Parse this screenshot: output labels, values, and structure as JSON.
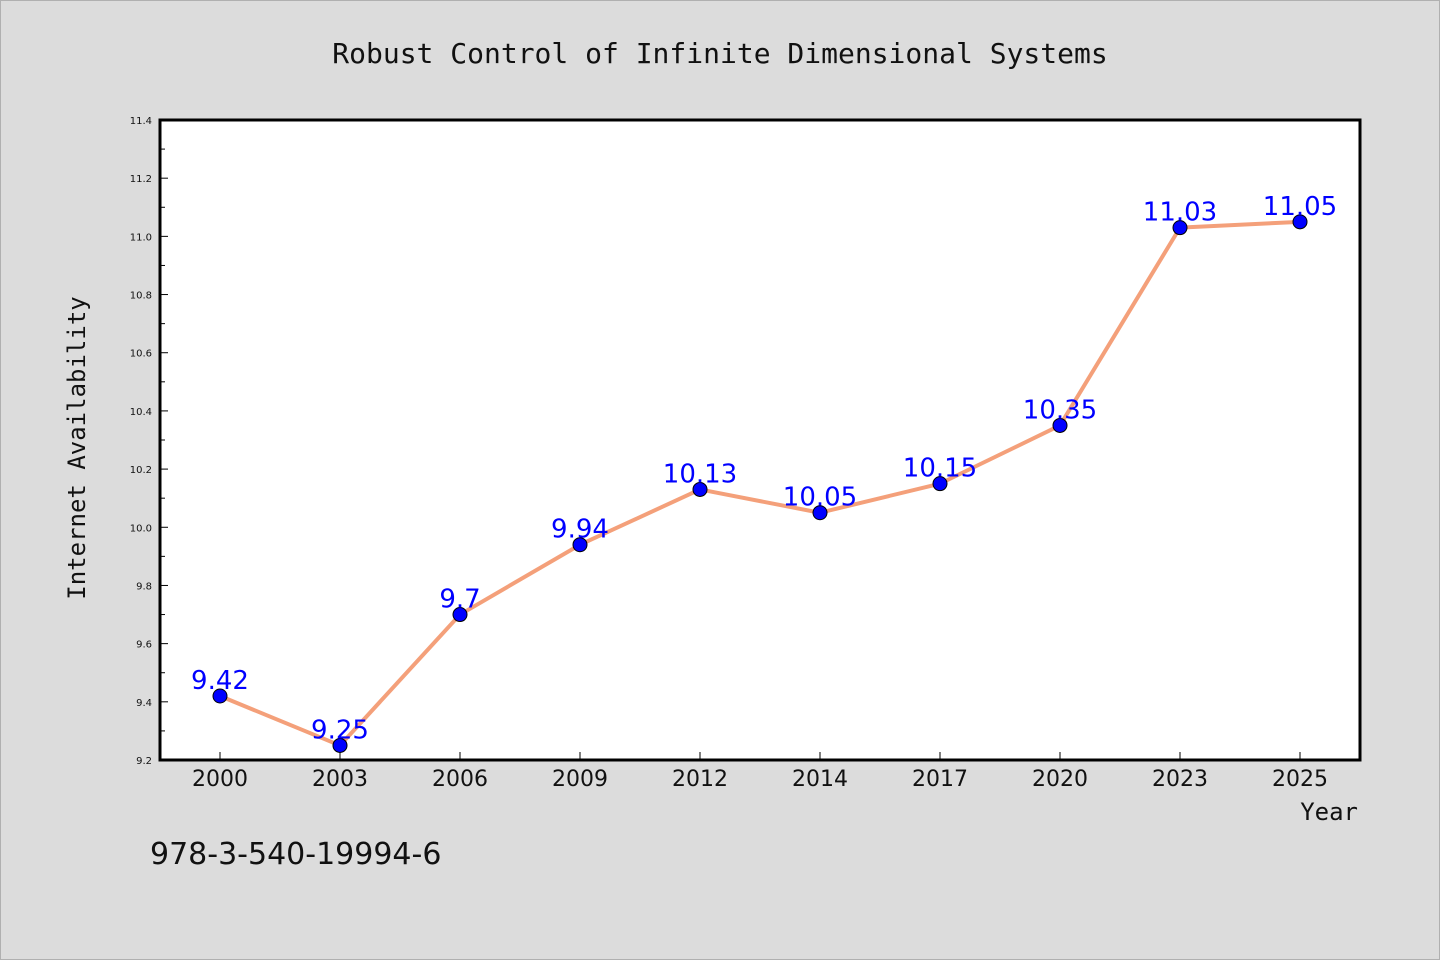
{
  "chart_data": {
    "type": "line",
    "title": "Robust Control of Infinite Dimensional Systems",
    "xlabel": "Year",
    "ylabel": "Internet Availability",
    "categories": [
      "2000",
      "2003",
      "2006",
      "2009",
      "2012",
      "2014",
      "2017",
      "2020",
      "2023",
      "2025"
    ],
    "values": [
      9.42,
      9.25,
      9.7,
      9.94,
      10.13,
      10.05,
      10.15,
      10.35,
      11.03,
      11.05
    ],
    "data_labels": [
      "9.42",
      "9.25",
      "9.7",
      "9.94",
      "10.13",
      "10.05",
      "10.15",
      "10.35",
      "11.03",
      "11.05"
    ],
    "ylim": [
      9.2,
      11.4
    ],
    "yticks": [
      "9.2",
      "9.4",
      "9.6",
      "9.8",
      "10.0",
      "10.2",
      "10.4",
      "10.6",
      "10.8",
      "11.0",
      "11.2",
      "11.4"
    ],
    "grid": false,
    "colors": {
      "line": "#f4a07a",
      "marker": "#0000ff",
      "label": "#0000ff",
      "background": "#dcdcdc",
      "plot_background": "#ffffff"
    }
  },
  "footer": {
    "isbn": "978-3-540-19994-6"
  }
}
